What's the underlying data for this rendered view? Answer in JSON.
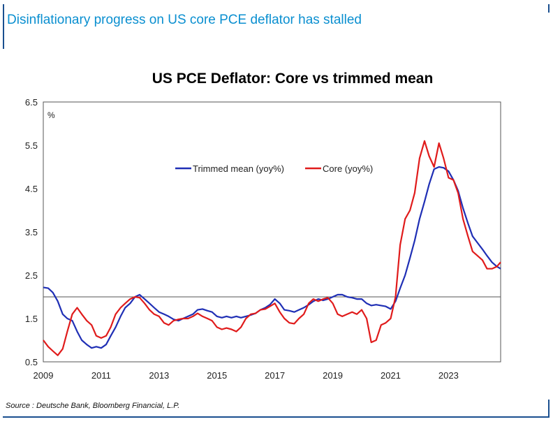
{
  "header": {
    "title": "Disinflationary progress on US core PCE deflator has stalled"
  },
  "footer": {
    "source": "Source : Deutsche Bank, Bloomberg Financial, L.P."
  },
  "colors": {
    "title_blue": "#0a8fd0",
    "accent": "#1a4f8f",
    "trimmed": "#1f2fb5",
    "core": "#e01b1b",
    "reference": "#555555"
  },
  "chart_data": {
    "type": "line",
    "title": "US PCE Deflator: Core vs trimmed mean",
    "ylabel": "%",
    "xlabel": "",
    "xlim": [
      2009.0,
      2024.8
    ],
    "ylim": [
      0.5,
      6.5
    ],
    "y_ticks": [
      "0.5",
      "1.5",
      "2.5",
      "3.5",
      "4.5",
      "5.5",
      "6.5"
    ],
    "x_ticks": [
      "2009",
      "2011",
      "2013",
      "2015",
      "2017",
      "2019",
      "2021",
      "2023"
    ],
    "reference_line": 2.0,
    "legend_position": "upper-middle",
    "series": [
      {
        "name": "Trimmed mean (yoy%)",
        "color": "#1f2fb5",
        "points": [
          [
            2009.0,
            2.22
          ],
          [
            2009.17,
            2.2
          ],
          [
            2009.33,
            2.1
          ],
          [
            2009.5,
            1.9
          ],
          [
            2009.67,
            1.6
          ],
          [
            2009.83,
            1.5
          ],
          [
            2010.0,
            1.45
          ],
          [
            2010.17,
            1.2
          ],
          [
            2010.33,
            1.0
          ],
          [
            2010.5,
            0.9
          ],
          [
            2010.67,
            0.82
          ],
          [
            2010.83,
            0.85
          ],
          [
            2011.0,
            0.82
          ],
          [
            2011.17,
            0.9
          ],
          [
            2011.33,
            1.1
          ],
          [
            2011.5,
            1.3
          ],
          [
            2011.67,
            1.55
          ],
          [
            2011.83,
            1.75
          ],
          [
            2012.0,
            1.85
          ],
          [
            2012.17,
            2.0
          ],
          [
            2012.33,
            2.05
          ],
          [
            2012.5,
            1.95
          ],
          [
            2012.67,
            1.85
          ],
          [
            2012.83,
            1.75
          ],
          [
            2013.0,
            1.65
          ],
          [
            2013.17,
            1.6
          ],
          [
            2013.33,
            1.55
          ],
          [
            2013.5,
            1.48
          ],
          [
            2013.67,
            1.45
          ],
          [
            2013.83,
            1.5
          ],
          [
            2014.0,
            1.55
          ],
          [
            2014.17,
            1.6
          ],
          [
            2014.33,
            1.7
          ],
          [
            2014.5,
            1.72
          ],
          [
            2014.67,
            1.68
          ],
          [
            2014.83,
            1.65
          ],
          [
            2015.0,
            1.55
          ],
          [
            2015.17,
            1.52
          ],
          [
            2015.33,
            1.55
          ],
          [
            2015.5,
            1.52
          ],
          [
            2015.67,
            1.55
          ],
          [
            2015.83,
            1.52
          ],
          [
            2016.0,
            1.55
          ],
          [
            2016.17,
            1.58
          ],
          [
            2016.33,
            1.62
          ],
          [
            2016.5,
            1.7
          ],
          [
            2016.67,
            1.75
          ],
          [
            2016.83,
            1.82
          ],
          [
            2017.0,
            1.95
          ],
          [
            2017.17,
            1.85
          ],
          [
            2017.33,
            1.7
          ],
          [
            2017.5,
            1.68
          ],
          [
            2017.67,
            1.65
          ],
          [
            2017.83,
            1.7
          ],
          [
            2018.0,
            1.75
          ],
          [
            2018.17,
            1.82
          ],
          [
            2018.33,
            1.9
          ],
          [
            2018.5,
            1.95
          ],
          [
            2018.67,
            1.92
          ],
          [
            2018.83,
            1.95
          ],
          [
            2019.0,
            2.0
          ],
          [
            2019.17,
            2.05
          ],
          [
            2019.33,
            2.05
          ],
          [
            2019.5,
            2.0
          ],
          [
            2019.67,
            1.98
          ],
          [
            2019.83,
            1.95
          ],
          [
            2020.0,
            1.95
          ],
          [
            2020.17,
            1.85
          ],
          [
            2020.33,
            1.8
          ],
          [
            2020.5,
            1.82
          ],
          [
            2020.67,
            1.8
          ],
          [
            2020.83,
            1.78
          ],
          [
            2021.0,
            1.72
          ],
          [
            2021.17,
            1.9
          ],
          [
            2021.33,
            2.2
          ],
          [
            2021.5,
            2.5
          ],
          [
            2021.67,
            2.9
          ],
          [
            2021.83,
            3.3
          ],
          [
            2022.0,
            3.8
          ],
          [
            2022.17,
            4.2
          ],
          [
            2022.33,
            4.6
          ],
          [
            2022.5,
            4.95
          ],
          [
            2022.67,
            5.0
          ],
          [
            2022.83,
            4.98
          ],
          [
            2023.0,
            4.9
          ],
          [
            2023.17,
            4.7
          ],
          [
            2023.33,
            4.45
          ],
          [
            2023.5,
            4.05
          ],
          [
            2023.67,
            3.7
          ],
          [
            2023.83,
            3.4
          ],
          [
            2024.0,
            3.25
          ],
          [
            2024.17,
            3.1
          ],
          [
            2024.33,
            2.95
          ],
          [
            2024.5,
            2.8
          ],
          [
            2024.67,
            2.7
          ],
          [
            2024.8,
            2.65
          ]
        ]
      },
      {
        "name": "Core (yoy%)",
        "color": "#e01b1b",
        "points": [
          [
            2009.0,
            1.0
          ],
          [
            2009.17,
            0.85
          ],
          [
            2009.33,
            0.75
          ],
          [
            2009.5,
            0.65
          ],
          [
            2009.67,
            0.8
          ],
          [
            2009.83,
            1.2
          ],
          [
            2010.0,
            1.6
          ],
          [
            2010.17,
            1.75
          ],
          [
            2010.33,
            1.6
          ],
          [
            2010.5,
            1.45
          ],
          [
            2010.67,
            1.35
          ],
          [
            2010.83,
            1.1
          ],
          [
            2011.0,
            1.05
          ],
          [
            2011.17,
            1.1
          ],
          [
            2011.33,
            1.3
          ],
          [
            2011.5,
            1.6
          ],
          [
            2011.67,
            1.75
          ],
          [
            2011.83,
            1.85
          ],
          [
            2012.0,
            1.95
          ],
          [
            2012.17,
            2.0
          ],
          [
            2012.33,
            1.98
          ],
          [
            2012.5,
            1.85
          ],
          [
            2012.67,
            1.7
          ],
          [
            2012.83,
            1.6
          ],
          [
            2013.0,
            1.55
          ],
          [
            2013.17,
            1.4
          ],
          [
            2013.33,
            1.35
          ],
          [
            2013.5,
            1.45
          ],
          [
            2013.67,
            1.48
          ],
          [
            2013.83,
            1.5
          ],
          [
            2014.0,
            1.5
          ],
          [
            2014.17,
            1.55
          ],
          [
            2014.33,
            1.62
          ],
          [
            2014.5,
            1.55
          ],
          [
            2014.67,
            1.5
          ],
          [
            2014.83,
            1.45
          ],
          [
            2015.0,
            1.3
          ],
          [
            2015.17,
            1.25
          ],
          [
            2015.33,
            1.28
          ],
          [
            2015.5,
            1.25
          ],
          [
            2015.67,
            1.2
          ],
          [
            2015.83,
            1.3
          ],
          [
            2016.0,
            1.5
          ],
          [
            2016.17,
            1.6
          ],
          [
            2016.33,
            1.62
          ],
          [
            2016.5,
            1.7
          ],
          [
            2016.67,
            1.72
          ],
          [
            2016.83,
            1.78
          ],
          [
            2017.0,
            1.85
          ],
          [
            2017.17,
            1.65
          ],
          [
            2017.33,
            1.5
          ],
          [
            2017.5,
            1.4
          ],
          [
            2017.67,
            1.38
          ],
          [
            2017.83,
            1.5
          ],
          [
            2018.0,
            1.6
          ],
          [
            2018.17,
            1.85
          ],
          [
            2018.33,
            1.95
          ],
          [
            2018.5,
            1.9
          ],
          [
            2018.67,
            1.95
          ],
          [
            2018.83,
            1.98
          ],
          [
            2019.0,
            1.85
          ],
          [
            2019.17,
            1.6
          ],
          [
            2019.33,
            1.55
          ],
          [
            2019.5,
            1.6
          ],
          [
            2019.67,
            1.65
          ],
          [
            2019.83,
            1.6
          ],
          [
            2020.0,
            1.7
          ],
          [
            2020.17,
            1.5
          ],
          [
            2020.33,
            0.95
          ],
          [
            2020.5,
            1.0
          ],
          [
            2020.67,
            1.35
          ],
          [
            2020.83,
            1.4
          ],
          [
            2021.0,
            1.5
          ],
          [
            2021.17,
            2.0
          ],
          [
            2021.33,
            3.2
          ],
          [
            2021.5,
            3.8
          ],
          [
            2021.67,
            4.0
          ],
          [
            2021.83,
            4.4
          ],
          [
            2022.0,
            5.2
          ],
          [
            2022.17,
            5.6
          ],
          [
            2022.33,
            5.25
          ],
          [
            2022.5,
            5.0
          ],
          [
            2022.67,
            5.55
          ],
          [
            2022.83,
            5.2
          ],
          [
            2023.0,
            4.75
          ],
          [
            2023.17,
            4.7
          ],
          [
            2023.33,
            4.4
          ],
          [
            2023.5,
            3.8
          ],
          [
            2023.67,
            3.4
          ],
          [
            2023.83,
            3.05
          ],
          [
            2024.0,
            2.95
          ],
          [
            2024.17,
            2.85
          ],
          [
            2024.33,
            2.65
          ],
          [
            2024.5,
            2.65
          ],
          [
            2024.67,
            2.7
          ],
          [
            2024.8,
            2.8
          ]
        ]
      }
    ]
  }
}
